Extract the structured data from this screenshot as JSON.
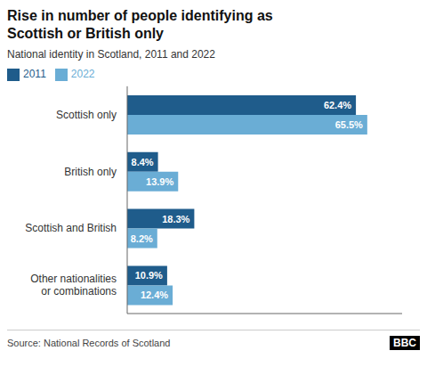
{
  "chart_data": {
    "type": "bar",
    "orientation": "horizontal",
    "title": "Rise in number of people identifying as\nScottish or British only",
    "subtitle": "National identity in Scotland, 2011 and 2022",
    "categories": [
      "Scottish only",
      "British only",
      "Scottish and British",
      "Other nationalities\nor combinations"
    ],
    "series": [
      {
        "name": "2011",
        "color": "#1f5c8b",
        "values": [
          62.4,
          8.4,
          18.3,
          10.9
        ],
        "value_labels": [
          "62.4%",
          "8.4%",
          "18.3%",
          "10.9%"
        ]
      },
      {
        "name": "2022",
        "color": "#6aadd5",
        "values": [
          65.5,
          13.9,
          8.2,
          12.4
        ],
        "value_labels": [
          "65.5%",
          "13.9%",
          "8.2%",
          "12.4%"
        ]
      }
    ],
    "xlim": [
      0,
      75
    ],
    "tick_labels": "y",
    "data_labels": true,
    "grid": false,
    "legend": "upper left",
    "annotations": [
      "Source: National Records of Scotland",
      "BBC"
    ]
  }
}
